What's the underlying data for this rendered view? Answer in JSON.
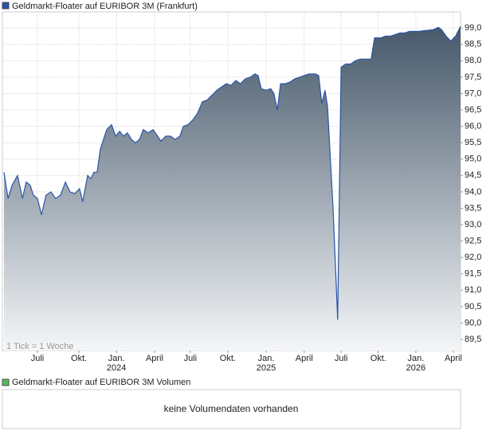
{
  "chart_data": {
    "type": "area",
    "series": [
      {
        "name": "Geldmarkt-Floater auf EURIBOR 3M (Frankfurt)",
        "color": "#2a55a8",
        "fill_top": "#46586a",
        "fill_bottom": "#f4f6f8",
        "x": [
          0,
          1.4,
          2.8,
          4.7,
          6.4,
          7.7,
          9.1,
          10.2,
          11.6,
          13.0,
          14.6,
          16.3,
          17.9,
          19.6,
          21.3,
          22.9,
          24.6,
          26.2,
          27.3,
          29.0,
          30.1,
          31.2,
          32.3,
          33.4,
          34.5,
          35.6,
          37.3,
          38.7,
          40.1,
          41.4,
          42.8,
          44.2,
          45.6,
          47.0,
          48.3,
          50.0,
          51.7,
          53.3,
          54.4,
          56.1,
          57.7,
          59.4,
          61.0,
          62.2,
          63.8,
          65.5,
          67.1,
          68.8,
          70.4,
          72.1,
          73.8,
          75.4,
          77.1,
          78.7,
          80.4,
          82.0,
          83.7,
          85.4,
          87.0,
          88.1,
          89.2,
          90.9,
          92.5,
          93.6,
          94.8,
          95.9,
          97.5,
          99.2,
          100.8,
          102.5,
          104.1,
          105.8,
          108.0,
          109.1,
          110.2,
          111.3,
          112.2,
          114.1,
          115.7,
          116.9,
          118.5,
          120.2,
          121.8,
          123.5,
          125.1,
          127.3,
          128.5,
          130.7,
          132.3,
          134.0,
          135.6,
          137.3,
          139.0,
          140.6,
          142.3,
          143.9,
          145.6,
          147.2,
          148.9,
          150.6,
          151.7,
          153.3,
          154.9,
          156.6,
          158.3
        ],
        "values": [
          94.6,
          93.8,
          94.2,
          94.5,
          93.8,
          94.3,
          94.2,
          93.9,
          93.8,
          93.3,
          93.9,
          94.0,
          93.8,
          93.9,
          94.3,
          94.0,
          93.95,
          94.1,
          93.7,
          94.5,
          94.4,
          94.6,
          94.6,
          95.3,
          95.6,
          95.9,
          96.05,
          95.7,
          95.85,
          95.7,
          95.8,
          95.6,
          95.5,
          95.6,
          95.9,
          95.8,
          95.9,
          95.7,
          95.55,
          95.7,
          95.7,
          95.6,
          95.7,
          96.0,
          96.05,
          96.2,
          96.4,
          96.75,
          96.8,
          96.95,
          97.1,
          97.2,
          97.3,
          97.25,
          97.4,
          97.3,
          97.45,
          97.5,
          97.6,
          97.55,
          97.15,
          97.1,
          97.15,
          97.0,
          96.5,
          97.3,
          97.3,
          97.35,
          97.45,
          97.5,
          97.55,
          97.6,
          97.6,
          97.55,
          96.7,
          97.1,
          96.6,
          93.5,
          90.1,
          97.8,
          97.9,
          97.9,
          98.0,
          98.05,
          98.05,
          98.05,
          98.7,
          98.7,
          98.75,
          98.75,
          98.8,
          98.85,
          98.85,
          98.9,
          98.9,
          98.9,
          98.92,
          98.93,
          98.95,
          99.02,
          98.95,
          98.75,
          98.6,
          98.75,
          99.05
        ]
      }
    ],
    "xlim": [
      0,
      158.3
    ],
    "xticks": [
      {
        "value": 11.6,
        "label": "Juli"
      },
      {
        "value": 26.0,
        "label": "Okt."
      },
      {
        "value": 39.0,
        "label": "Jan.",
        "year": "2024"
      },
      {
        "value": 52.2,
        "label": "April"
      },
      {
        "value": 64.6,
        "label": "Juli"
      },
      {
        "value": 77.6,
        "label": "Okt."
      },
      {
        "value": 90.9,
        "label": "Jan.",
        "year": "2025"
      },
      {
        "value": 104.1,
        "label": "April"
      },
      {
        "value": 116.9,
        "label": "Juli"
      },
      {
        "value": 129.8,
        "label": "Okt."
      },
      {
        "value": 142.8,
        "label": "Jan.",
        "year": "2026"
      },
      {
        "value": 155.8,
        "label": "April"
      }
    ],
    "ylim": [
      89.16,
      99.49
    ],
    "yticks": [
      {
        "value": 89.5,
        "label": "89,5"
      },
      {
        "value": 90.0,
        "label": "90,0"
      },
      {
        "value": 90.5,
        "label": "90,5"
      },
      {
        "value": 91.0,
        "label": "91,0"
      },
      {
        "value": 91.5,
        "label": "91,5"
      },
      {
        "value": 92.0,
        "label": "92,0"
      },
      {
        "value": 92.5,
        "label": "92,5"
      },
      {
        "value": 93.0,
        "label": "93,0"
      },
      {
        "value": 93.5,
        "label": "93,5"
      },
      {
        "value": 94.0,
        "label": "94,0"
      },
      {
        "value": 94.5,
        "label": "94,5"
      },
      {
        "value": 95.0,
        "label": "95,0"
      },
      {
        "value": 95.5,
        "label": "95,5"
      },
      {
        "value": 96.0,
        "label": "96,0"
      },
      {
        "value": 96.5,
        "label": "96,5"
      },
      {
        "value": 97.0,
        "label": "97,0"
      },
      {
        "value": 97.5,
        "label": "97,5"
      },
      {
        "value": 98.0,
        "label": "98,0"
      },
      {
        "value": 98.5,
        "label": "98,5"
      },
      {
        "value": 99.0,
        "label": "99,0"
      }
    ],
    "grid": true,
    "annotation": "1 Tick = 1 Woche"
  },
  "volume_panel": {
    "title": "Geldmarkt-Floater auf EURIBOR 3M Volumen",
    "color": "#5cb85c",
    "message": "keine Volumendaten vorhanden"
  }
}
